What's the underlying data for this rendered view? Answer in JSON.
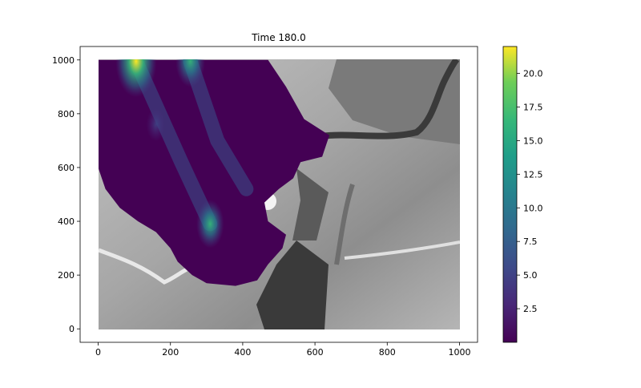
{
  "chart_data": {
    "type": "heatmap",
    "title": "Time 180.0",
    "xlabel": "",
    "ylabel": "",
    "xlim": [
      -50,
      1050
    ],
    "ylim": [
      -50,
      1050
    ],
    "x_ticks": [
      0,
      200,
      400,
      600,
      800,
      1000
    ],
    "y_ticks": [
      0,
      200,
      400,
      600,
      800,
      1000
    ],
    "x_tick_labels": [
      "0",
      "200",
      "400",
      "600",
      "800",
      "1000"
    ],
    "y_tick_labels": [
      "0",
      "200",
      "400",
      "600",
      "800",
      "1000"
    ],
    "grid": false,
    "background": "grayscale terrain hillshade",
    "overlay_colormap": "viridis",
    "colorbar": {
      "min": 0,
      "max": 22,
      "ticks": [
        2.5,
        5.0,
        7.5,
        10.0,
        12.5,
        15.0,
        17.5,
        20.0
      ],
      "tick_labels": [
        "2.5",
        "5.0",
        "7.5",
        "10.0",
        "12.5",
        "15.0",
        "17.5",
        "20.0"
      ]
    },
    "flow_extent_outline": [
      [
        0,
        1000
      ],
      [
        470,
        1000
      ],
      [
        520,
        900
      ],
      [
        570,
        780
      ],
      [
        640,
        720
      ],
      [
        620,
        640
      ],
      [
        560,
        620
      ],
      [
        540,
        560
      ],
      [
        500,
        520
      ],
      [
        460,
        470
      ],
      [
        470,
        400
      ],
      [
        520,
        350
      ],
      [
        510,
        300
      ],
      [
        470,
        240
      ],
      [
        440,
        180
      ],
      [
        380,
        160
      ],
      [
        300,
        170
      ],
      [
        260,
        200
      ],
      [
        220,
        250
      ],
      [
        200,
        300
      ],
      [
        160,
        360
      ],
      [
        110,
        400
      ],
      [
        60,
        450
      ],
      [
        20,
        520
      ],
      [
        0,
        600
      ]
    ],
    "hotspots": [
      {
        "x": 105,
        "y": 995,
        "value": 22.0
      },
      {
        "x": 255,
        "y": 995,
        "value": 13.0
      },
      {
        "x": 310,
        "y": 390,
        "value": 11.5
      },
      {
        "x": 160,
        "y": 760,
        "value": 5.0
      }
    ]
  }
}
